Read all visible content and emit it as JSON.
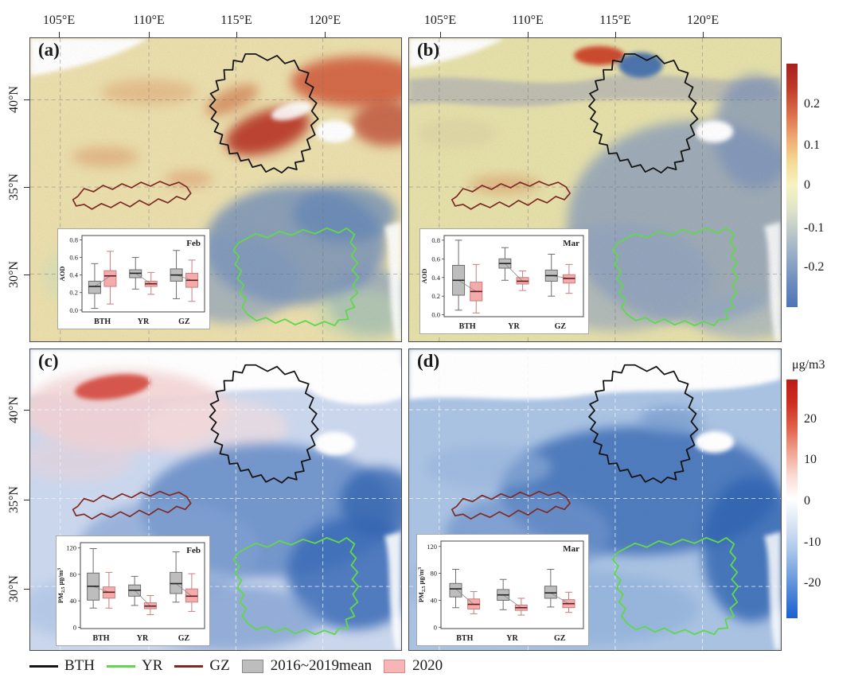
{
  "figure": {
    "lon_labels": [
      "105°E",
      "110°E",
      "115°E",
      "120°E"
    ],
    "lat_labels": [
      "40°N",
      "35°N",
      "30°N"
    ],
    "panels": [
      {
        "id": "a",
        "label": "(a)"
      },
      {
        "id": "b",
        "label": "(b)"
      },
      {
        "id": "c",
        "label": "(c)"
      },
      {
        "id": "d",
        "label": "(d)"
      }
    ]
  },
  "legend": {
    "regions": [
      {
        "name": "BTH",
        "color": "#141414"
      },
      {
        "name": "YR",
        "color": "#63d64f"
      },
      {
        "name": "GZ",
        "color": "#7e2a24"
      }
    ],
    "series": [
      {
        "name": "2016~2019mean",
        "fill": "#bdbdbd",
        "stroke": "#8a8a8a"
      },
      {
        "name": "2020",
        "fill": "#f7b5b5",
        "stroke": "#d08b8b"
      }
    ]
  },
  "colorbars": {
    "aod": {
      "ticks": [
        "0.2",
        "0.1",
        "0",
        "-0.1",
        "-0.2"
      ],
      "gradient": [
        "#a8201d",
        "#c0392b",
        "#d96b4a",
        "#eda66f",
        "#f5d894",
        "#f7f3c2",
        "#dfe3c8",
        "#b9c6c9",
        "#93a9c6",
        "#6d8cbd",
        "#4f74b3"
      ]
    },
    "pm": {
      "unit": "μg/m3",
      "ticks": [
        "20",
        "10",
        "0",
        "-10",
        "-20"
      ],
      "gradient": [
        "#bd1a16",
        "#cd2f21",
        "#e0604a",
        "#efa18e",
        "#fad9d1",
        "#ffffff",
        "#dbe6f5",
        "#b3cbed",
        "#7fa7e0",
        "#4a82d6",
        "#1a60cf"
      ]
    }
  },
  "chart_data": [
    {
      "type": "box",
      "panel": "a",
      "title": "Feb",
      "ylabel": {
        "main": "AOD"
      },
      "ylim": [
        -0.02,
        0.85
      ],
      "ytick_vals": [
        0.0,
        0.2,
        0.4,
        0.6,
        0.8
      ],
      "yticks": [
        "0.0",
        "0.2",
        "0.4",
        "0.6",
        "0.8"
      ],
      "categories": [
        "BTH",
        "YR",
        "GZ"
      ],
      "series": [
        {
          "name": "2016~2019mean",
          "fill": "#bdbdbd",
          "stroke": "#6e6e6e",
          "median_color": "#222222",
          "boxes": [
            {
              "low": 0.02,
              "q1": 0.19,
              "median": 0.27,
              "q3": 0.33,
              "high": 0.53
            },
            {
              "low": 0.24,
              "q1": 0.37,
              "median": 0.42,
              "q3": 0.46,
              "high": 0.6
            },
            {
              "low": 0.13,
              "q1": 0.33,
              "median": 0.4,
              "q3": 0.47,
              "high": 0.68
            }
          ]
        },
        {
          "name": "2020",
          "fill": "#f4abab",
          "stroke": "#c67f7f",
          "median_color": "#5f1f1f",
          "boxes": [
            {
              "low": 0.07,
              "q1": 0.27,
              "median": 0.39,
              "q3": 0.45,
              "high": 0.67
            },
            {
              "low": 0.18,
              "q1": 0.27,
              "median": 0.3,
              "q3": 0.33,
              "high": 0.43
            },
            {
              "low": 0.1,
              "q1": 0.26,
              "median": 0.34,
              "q3": 0.42,
              "high": 0.57
            }
          ]
        }
      ],
      "connector_color": "#8a8a8a"
    },
    {
      "type": "box",
      "panel": "b",
      "title": "Mar",
      "ylabel": {
        "main": "AOD"
      },
      "ylim": [
        -0.02,
        0.85
      ],
      "ytick_vals": [
        0.0,
        0.2,
        0.4,
        0.6,
        0.8
      ],
      "yticks": [
        "0.0",
        "0.2",
        "0.4",
        "0.6",
        "0.8"
      ],
      "categories": [
        "BTH",
        "YR",
        "GZ"
      ],
      "series": [
        {
          "name": "2016~2019mean",
          "fill": "#bdbdbd",
          "stroke": "#6e6e6e",
          "median_color": "#222222",
          "boxes": [
            {
              "low": 0.05,
              "q1": 0.21,
              "median": 0.37,
              "q3": 0.53,
              "high": 0.8
            },
            {
              "low": 0.37,
              "q1": 0.5,
              "median": 0.55,
              "q3": 0.6,
              "high": 0.72
            },
            {
              "low": 0.2,
              "q1": 0.36,
              "median": 0.42,
              "q3": 0.48,
              "high": 0.65
            }
          ]
        },
        {
          "name": "2020",
          "fill": "#f4abab",
          "stroke": "#c67f7f",
          "median_color": "#5f1f1f",
          "boxes": [
            {
              "low": 0.02,
              "q1": 0.15,
              "median": 0.25,
              "q3": 0.35,
              "high": 0.54
            },
            {
              "low": 0.26,
              "q1": 0.33,
              "median": 0.36,
              "q3": 0.4,
              "high": 0.47
            },
            {
              "low": 0.23,
              "q1": 0.34,
              "median": 0.39,
              "q3": 0.43,
              "high": 0.54
            }
          ]
        }
      ],
      "connector_color": "#8a8a8a"
    },
    {
      "type": "box",
      "panel": "c",
      "title": "Feb",
      "ylabel": {
        "main": "PM",
        "sub": "2.5",
        "unit": " μg/m",
        "sup": "3"
      },
      "ylim": [
        -2,
        128
      ],
      "ytick_vals": [
        0,
        40,
        80,
        120
      ],
      "yticks": [
        "0",
        "40",
        "80",
        "120"
      ],
      "categories": [
        "BTH",
        "YR",
        "GZ"
      ],
      "series": [
        {
          "name": "2016~2019mean",
          "fill": "#bdbdbd",
          "stroke": "#6e6e6e",
          "median_color": "#222222",
          "boxes": [
            {
              "low": 29,
              "q1": 41,
              "median": 62,
              "q3": 82,
              "high": 119
            },
            {
              "low": 33,
              "q1": 47,
              "median": 56,
              "q3": 64,
              "high": 77
            },
            {
              "low": 38,
              "q1": 51,
              "median": 66,
              "q3": 83,
              "high": 114
            }
          ]
        },
        {
          "name": "2020",
          "fill": "#f4abab",
          "stroke": "#c67f7f",
          "median_color": "#5f1f1f",
          "boxes": [
            {
              "low": 29,
              "q1": 44,
              "median": 53,
              "q3": 61,
              "high": 83
            },
            {
              "low": 19,
              "q1": 28,
              "median": 32,
              "q3": 37,
              "high": 48
            },
            {
              "low": 24,
              "q1": 38,
              "median": 47,
              "q3": 58,
              "high": 81
            }
          ]
        }
      ],
      "connector_color": "#8a8a8a"
    },
    {
      "type": "box",
      "panel": "d",
      "title": "Mar",
      "ylabel": {
        "main": "PM",
        "sub": "2.5",
        "unit": " μg/m",
        "sup": "3"
      },
      "ylim": [
        -2,
        128
      ],
      "ytick_vals": [
        0,
        40,
        80,
        120
      ],
      "yticks": [
        "0",
        "40",
        "80",
        "120"
      ],
      "categories": [
        "BTH",
        "YR",
        "GZ"
      ],
      "series": [
        {
          "name": "2016~2019mean",
          "fill": "#bdbdbd",
          "stroke": "#6e6e6e",
          "median_color": "#222222",
          "boxes": [
            {
              "low": 29,
              "q1": 45,
              "median": 57,
              "q3": 65,
              "high": 86
            },
            {
              "low": 26,
              "q1": 40,
              "median": 48,
              "q3": 56,
              "high": 71
            },
            {
              "low": 30,
              "q1": 43,
              "median": 51,
              "q3": 61,
              "high": 86
            }
          ]
        },
        {
          "name": "2020",
          "fill": "#f4abab",
          "stroke": "#c67f7f",
          "median_color": "#5f1f1f",
          "boxes": [
            {
              "low": 20,
              "q1": 27,
              "median": 34,
              "q3": 42,
              "high": 53
            },
            {
              "low": 18,
              "q1": 25,
              "median": 29,
              "q3": 33,
              "high": 43
            },
            {
              "low": 22,
              "q1": 29,
              "median": 35,
              "q3": 41,
              "high": 52
            }
          ]
        }
      ],
      "connector_color": "#8a8a8a"
    }
  ]
}
